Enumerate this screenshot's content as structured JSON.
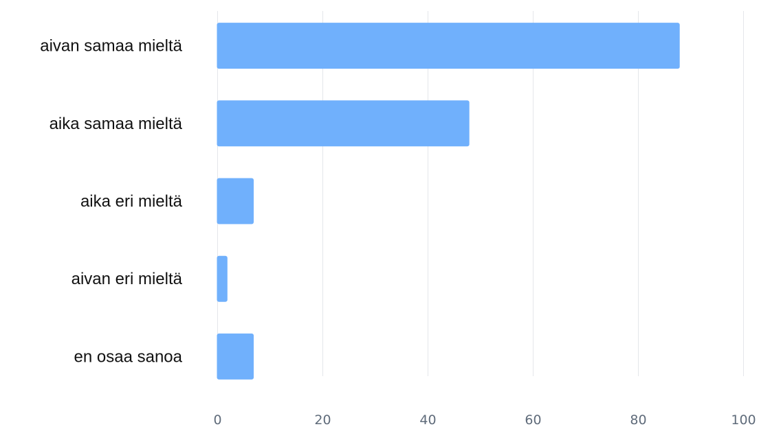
{
  "chart_data": {
    "type": "bar",
    "orientation": "horizontal",
    "categories": [
      "aivan samaa mieltä",
      "aika samaa mieltä",
      "aika eri mieltä",
      "aivan eri mieltä",
      "en osaa sanoa"
    ],
    "values": [
      88,
      48,
      7,
      2,
      7
    ],
    "xlim": [
      0,
      100
    ],
    "x_ticks": [
      0,
      20,
      40,
      60,
      80,
      100
    ],
    "title": "",
    "xlabel": "",
    "ylabel": "",
    "grid": "vertical",
    "legend": "none",
    "bar_color": "#70b0fc"
  }
}
